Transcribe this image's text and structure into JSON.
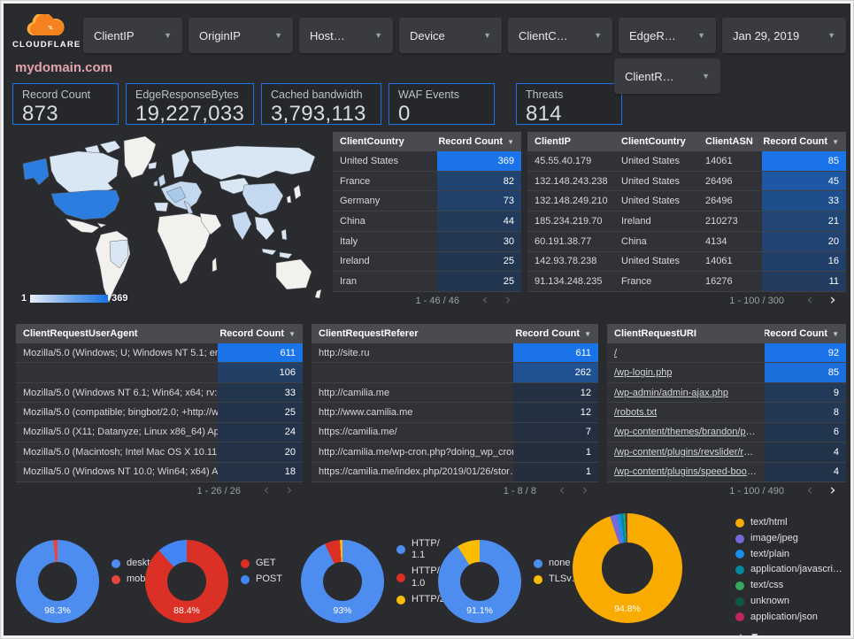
{
  "brand": {
    "logo_text": "CLOUDFLARE"
  },
  "title": "mydomain.com",
  "filters": {
    "row1": [
      "ClientIP",
      "OriginIP",
      "Host…",
      "Device",
      "ClientC…",
      "EdgeR…"
    ],
    "date": "Jan 29, 2019",
    "row2": [
      "ClientR…"
    ]
  },
  "scorecards": [
    {
      "label": "Record Count",
      "value": "873"
    },
    {
      "label": "EdgeResponseBytes",
      "value": "19,227,033"
    },
    {
      "label": "Cached bandwidth",
      "value": "3,793,113"
    },
    {
      "label": "WAF Events",
      "value": "0"
    },
    {
      "label": "Threats",
      "value": "814"
    }
  ],
  "map": {
    "legend_min": "1",
    "legend_max": "369"
  },
  "colors": {
    "accent": "#1a73e8",
    "map_max": "#2b7de0",
    "title": "#e2a4ac"
  },
  "tables": {
    "country": {
      "headers": [
        "ClientCountry",
        "Record Count"
      ],
      "max": 369,
      "rows": [
        [
          "United States",
          369
        ],
        [
          "France",
          82
        ],
        [
          "Germany",
          73
        ],
        [
          "China",
          44
        ],
        [
          "Italy",
          30
        ],
        [
          "Ireland",
          25
        ],
        [
          "Iran",
          25
        ]
      ],
      "pagination": "1 - 46 / 46",
      "prev_active": false,
      "next_active": false
    },
    "ip": {
      "headers": [
        "ClientIP",
        "ClientCountry",
        "ClientASN",
        "Record Count"
      ],
      "max": 85,
      "rows": [
        [
          "45.55.40.179",
          "United States",
          "14061",
          85
        ],
        [
          "132.148.243.238",
          "United States",
          "26496",
          45
        ],
        [
          "132.148.249.210",
          "United States",
          "26496",
          33
        ],
        [
          "185.234.219.70",
          "Ireland",
          "210273",
          21
        ],
        [
          "60.191.38.77",
          "China",
          "4134",
          20
        ],
        [
          "142.93.78.238",
          "United States",
          "14061",
          16
        ],
        [
          "91.134.248.235",
          "France",
          "16276",
          11
        ]
      ],
      "pagination": "1 - 100 / 300",
      "prev_active": false,
      "next_active": true
    },
    "useragent": {
      "headers": [
        "ClientRequestUserAgent",
        "Record Count"
      ],
      "max": 611,
      "rows": [
        [
          "Mozilla/5.0 (Windows; U; Windows NT 5.1; en-U…",
          611
        ],
        [
          "",
          106
        ],
        [
          "Mozilla/5.0 (Windows NT 6.1; Win64; x64; rv:64.…",
          33
        ],
        [
          "Mozilla/5.0 (compatible; bingbot/2.0; +http://w…",
          25
        ],
        [
          "Mozilla/5.0 (X11; Datanyze; Linux x86_64) Appl…",
          24
        ],
        [
          "Mozilla/5.0 (Macintosh; Intel Mac OS X 10.11; r…",
          20
        ],
        [
          "Mozilla/5.0 (Windows NT 10.0; Win64; x64) App…",
          18
        ]
      ],
      "pagination": "1 - 26 / 26",
      "prev_active": false,
      "next_active": false
    },
    "referer": {
      "headers": [
        "ClientRequestReferer",
        "Record Count"
      ],
      "max": 611,
      "rows": [
        [
          "http://site.ru",
          611
        ],
        [
          "",
          262
        ],
        [
          "http://camilia.me",
          12
        ],
        [
          "http://www.camilia.me",
          12
        ],
        [
          "https://camilia.me/",
          7
        ],
        [
          "http://camilia.me/wp-cron.php?doing_wp_cron…",
          1
        ],
        [
          "https://camilia.me/index.php/2019/01/26/stor…",
          1
        ]
      ],
      "pagination": "1 - 8 / 8",
      "prev_active": false,
      "next_active": false
    },
    "uri": {
      "headers": [
        "ClientRequestURI",
        "Record Count"
      ],
      "max": 92,
      "links": true,
      "rows": [
        [
          "/",
          92
        ],
        [
          "/wp-login.php",
          85
        ],
        [
          "/wp-admin/admin-ajax.php",
          9
        ],
        [
          "/robots.txt",
          8
        ],
        [
          "/wp-content/themes/brandon/plu…",
          6
        ],
        [
          "/wp-content/plugins/revslider/rs-p…",
          4
        ],
        [
          "/wp-content/plugins/speed-booste…",
          4
        ]
      ],
      "pagination": "1 - 100 / 490",
      "prev_active": false,
      "next_active": true
    }
  },
  "donuts": [
    {
      "label": "98.3%",
      "slices": [
        {
          "name": "deskt…",
          "pct": 98.3,
          "color": "#4e8df0"
        },
        {
          "name": "mobile",
          "pct": 1.7,
          "color": "#e8453c"
        }
      ]
    },
    {
      "label": "88.4%",
      "slices": [
        {
          "name": "GET",
          "pct": 88.4,
          "color": "#da3025"
        },
        {
          "name": "POST",
          "pct": 11.6,
          "color": "#4285f4"
        }
      ]
    },
    {
      "label": "93%",
      "slices": [
        {
          "name": "HTTP/\n1.1",
          "pct": 93,
          "color": "#4e8df0"
        },
        {
          "name": "HTTP/\n1.0",
          "pct": 6,
          "color": "#da3025"
        },
        {
          "name": "HTTP/2",
          "pct": 1,
          "color": "#fbbc04"
        }
      ]
    },
    {
      "label": "91.1%",
      "slices": [
        {
          "name": "none",
          "pct": 91.1,
          "color": "#4e8df0"
        },
        {
          "name": "TLSv…",
          "pct": 8.9,
          "color": "#fbbc04"
        }
      ]
    },
    {
      "label": "94.8%",
      "has_pager": true,
      "pager": "▲▼",
      "slices": [
        {
          "name": "text/html",
          "pct": 94.8,
          "color": "#f9ab00"
        },
        {
          "name": "image/jpeg",
          "pct": 2.0,
          "color": "#7568d9"
        },
        {
          "name": "text/plain",
          "pct": 1.2,
          "color": "#1a90e8"
        },
        {
          "name": "application/javascri…",
          "pct": 0.8,
          "color": "#00879e"
        },
        {
          "name": "text/css",
          "pct": 0.5,
          "color": "#37a85b"
        },
        {
          "name": "unknown",
          "pct": 0.4,
          "color": "#0d5c3f"
        },
        {
          "name": "application/json",
          "pct": 0.3,
          "color": "#c2255c"
        }
      ]
    }
  ]
}
